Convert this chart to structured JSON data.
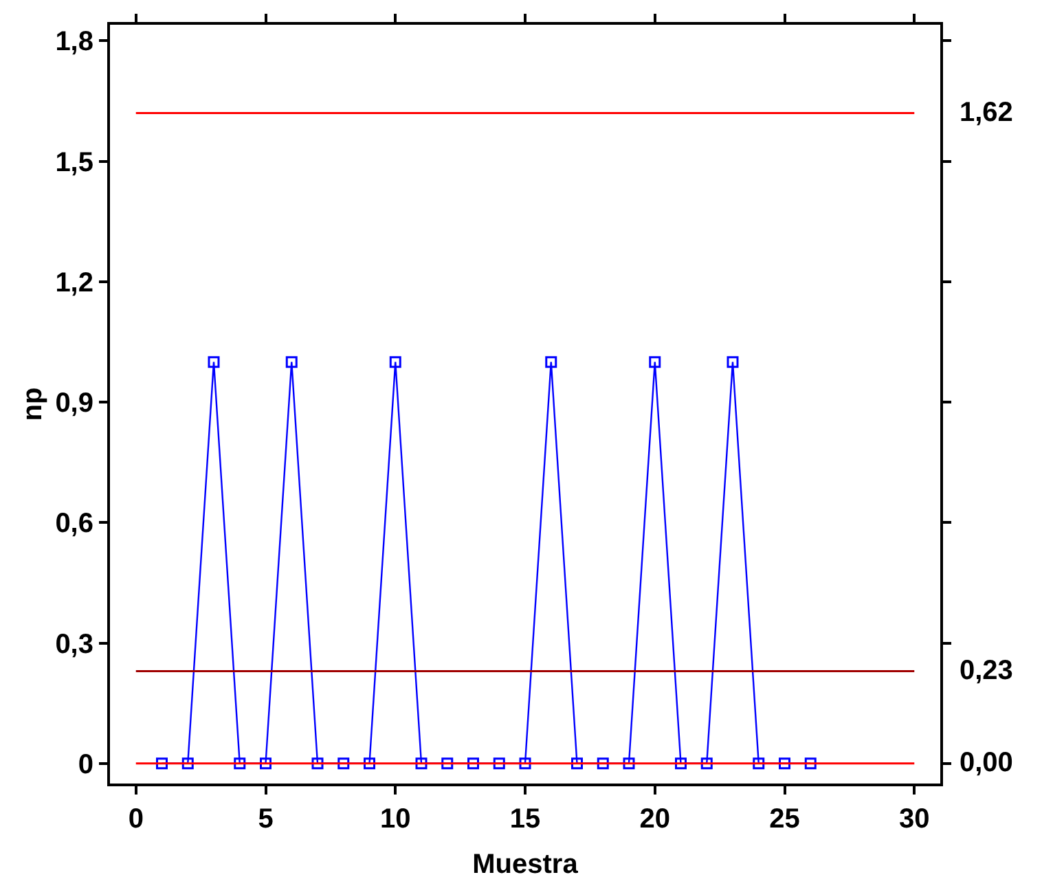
{
  "chart_data": {
    "type": "line",
    "xlabel": "Muestra",
    "ylabel": "np",
    "x": [
      1,
      2,
      3,
      4,
      5,
      6,
      7,
      8,
      9,
      10,
      11,
      12,
      13,
      14,
      15,
      16,
      17,
      18,
      19,
      20,
      21,
      22,
      23,
      24,
      25,
      26
    ],
    "series": [
      {
        "color": "#0000ff",
        "values": [
          0,
          0,
          1,
          0,
          0,
          1,
          0,
          0,
          0,
          1,
          0,
          0,
          0,
          0,
          0,
          1,
          0,
          0,
          0,
          1,
          0,
          0,
          1,
          0,
          0,
          0
        ]
      }
    ],
    "marker": "square",
    "line_style": "solid",
    "xlim": [
      -1,
      31
    ],
    "xticks": [
      0,
      5,
      10,
      15,
      20,
      25,
      30
    ],
    "ylim": [
      -0.05,
      1.84
    ],
    "yticks": [
      {
        "value": 0,
        "label": "0"
      },
      {
        "value": 0.3,
        "label": "0,3"
      },
      {
        "value": 0.6,
        "label": "0,6"
      },
      {
        "value": 0.9,
        "label": "0,9"
      },
      {
        "value": 1.2,
        "label": "1,2"
      },
      {
        "value": 1.5,
        "label": "1,5"
      },
      {
        "value": 1.8,
        "label": "1,8"
      }
    ],
    "ref_lines": [
      {
        "axis": "y",
        "value": 1.62,
        "label": "1,62",
        "color": "#ff0000"
      },
      {
        "axis": "y",
        "value": 0.23,
        "label": "0,23",
        "color": "#a00000"
      },
      {
        "axis": "y",
        "value": 0,
        "label": "0,00",
        "color": "#ff0000"
      }
    ]
  }
}
